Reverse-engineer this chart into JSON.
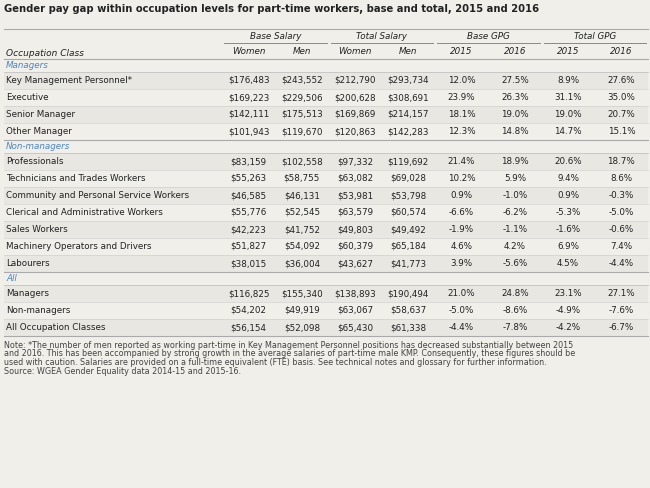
{
  "title": "Gender pay gap within occupation levels for part-time workers, base and total, 2015 and 2016",
  "col_groups": [
    "Base Salary",
    "Total Salary",
    "Base GPG",
    "Total GPG"
  ],
  "sub_headers": [
    "Women",
    "Men",
    "Women",
    "Men",
    "2015",
    "2016",
    "2015",
    "2016"
  ],
  "sections": [
    {
      "name": "Managers",
      "rows": [
        [
          "Key Management Personnel*",
          "$176,483",
          "$243,552",
          "$212,790",
          "$293,734",
          "12.0%",
          "27.5%",
          "8.9%",
          "27.6%"
        ],
        [
          "Executive",
          "$169,223",
          "$229,506",
          "$200,628",
          "$308,691",
          "23.9%",
          "26.3%",
          "31.1%",
          "35.0%"
        ],
        [
          "Senior Manager",
          "$142,111",
          "$175,513",
          "$169,869",
          "$214,157",
          "18.1%",
          "19.0%",
          "19.0%",
          "20.7%"
        ],
        [
          "Other Manager",
          "$101,943",
          "$119,670",
          "$120,863",
          "$142,283",
          "12.3%",
          "14.8%",
          "14.7%",
          "15.1%"
        ]
      ]
    },
    {
      "name": "Non-managers",
      "rows": [
        [
          "Professionals",
          "$83,159",
          "$102,558",
          "$97,332",
          "$119,692",
          "21.4%",
          "18.9%",
          "20.6%",
          "18.7%"
        ],
        [
          "Technicians and Trades Workers",
          "$55,263",
          "$58,755",
          "$63,082",
          "$69,028",
          "10.2%",
          "5.9%",
          "9.4%",
          "8.6%"
        ],
        [
          "Community and Personal Service Workers",
          "$46,585",
          "$46,131",
          "$53,981",
          "$53,798",
          "0.9%",
          "-1.0%",
          "0.9%",
          "-0.3%"
        ],
        [
          "Clerical and Administrative Workers",
          "$55,776",
          "$52,545",
          "$63,579",
          "$60,574",
          "-6.6%",
          "-6.2%",
          "-5.3%",
          "-5.0%"
        ],
        [
          "Sales Workers",
          "$42,223",
          "$41,752",
          "$49,803",
          "$49,492",
          "-1.9%",
          "-1.1%",
          "-1.6%",
          "-0.6%"
        ],
        [
          "Machinery Operators and Drivers",
          "$51,827",
          "$54,092",
          "$60,379",
          "$65,184",
          "4.6%",
          "4.2%",
          "6.9%",
          "7.4%"
        ],
        [
          "Labourers",
          "$38,015",
          "$36,004",
          "$43,627",
          "$41,773",
          "3.9%",
          "-5.6%",
          "4.5%",
          "-4.4%"
        ]
      ]
    },
    {
      "name": "All",
      "rows": [
        [
          "Managers",
          "$116,825",
          "$155,340",
          "$138,893",
          "$190,494",
          "21.0%",
          "24.8%",
          "23.1%",
          "27.1%"
        ],
        [
          "Non-managers",
          "$54,202",
          "$49,919",
          "$63,067",
          "$58,637",
          "-5.0%",
          "-8.6%",
          "-4.9%",
          "-7.6%"
        ],
        [
          "All Occupation Classes",
          "$56,154",
          "$52,098",
          "$65,430",
          "$61,338",
          "-4.4%",
          "-7.8%",
          "-4.2%",
          "-6.7%"
        ]
      ]
    }
  ],
  "note_line1": "Note: *The number of men reported as working part-time in Key Management Personnel positions has decreased substantially between 2015",
  "note_line2": "and 2016. This has been accompanied by strong growth in the average salaries of part-time male KMP. Consequently, these figures should be",
  "note_line3": "used with caution. Salaries are provided on a full-time equivalent (FTE) basis. See technical notes and glossary for further information.",
  "source": "Source: WGEA Gender Equality data 2014-15 and 2015-16.",
  "bg_color": "#f0efea",
  "row_alt_bg": "#e8e7e2",
  "section_color": "#4a86c8",
  "title_color": "#222222",
  "text_color": "#222222",
  "note_color": "#444444"
}
